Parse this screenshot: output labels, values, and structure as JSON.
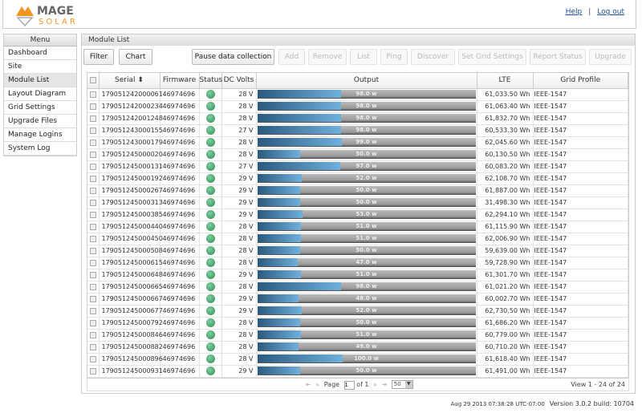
{
  "header": {
    "logo_top": "MAGE",
    "logo_bottom": "SOLAR",
    "help": "Help",
    "separator": "|",
    "logout": "Log out"
  },
  "sidebar": {
    "title": "Menu",
    "items": [
      {
        "label": "Dashboard"
      },
      {
        "label": "Site"
      },
      {
        "label": "Module List",
        "active": true
      },
      {
        "label": "Layout Diagram"
      },
      {
        "label": "Grid Settings"
      },
      {
        "label": "Upgrade Files"
      },
      {
        "label": "Manage Logins"
      },
      {
        "label": "System Log"
      }
    ]
  },
  "main": {
    "title": "Module List",
    "toolbar": {
      "filter": "Filter",
      "chart": "Chart",
      "pause": "Pause data collection",
      "add": "Add",
      "remove": "Remove",
      "list": "List",
      "ping": "Ping",
      "discover": "Discover",
      "set_grid": "Set Grid Settings",
      "report": "Report Status",
      "upgrade": "Upgrade"
    },
    "columns": [
      "Serial",
      "Firmware",
      "Status",
      "DC Volts",
      "Output",
      "LTE",
      "Grid Profile"
    ],
    "sort_icon": "sort-ascending-icon",
    "rows": [
      [
        "179051242000061",
        "46974696",
        "28 V",
        "98.0 w",
        "61,033.50 Wh",
        "IEEE-1547"
      ],
      [
        "179051242000234",
        "46974696",
        "28 V",
        "98.0 w",
        "61,063.40 Wh",
        "IEEE-1547"
      ],
      [
        "179051242001248",
        "46974696",
        "28 V",
        "98.0 w",
        "61,832.70 Wh",
        "IEEE-1547"
      ],
      [
        "179051243000155",
        "46974696",
        "27 V",
        "98.0 w",
        "60,533.30 Wh",
        "IEEE-1547"
      ],
      [
        "179051243000179",
        "46974696",
        "28 V",
        "99.0 w",
        "62,045.60 Wh",
        "IEEE-1547"
      ],
      [
        "179051245000020",
        "46974696",
        "28 V",
        "50.0 w",
        "60,130.50 Wh",
        "IEEE-1547"
      ],
      [
        "179051245000131",
        "46974696",
        "27 V",
        "97.0 w",
        "60,083.20 Wh",
        "IEEE-1547"
      ],
      [
        "179051245000192",
        "46974696",
        "29 V",
        "52.0 w",
        "62,108.70 Wh",
        "IEEE-1547"
      ],
      [
        "179051245000267",
        "46974696",
        "29 V",
        "50.0 w",
        "61,887.00 Wh",
        "IEEE-1547"
      ],
      [
        "179051245000313",
        "46974696",
        "29 V",
        "50.0 w",
        "31,498.30 Wh",
        "IEEE-1547"
      ],
      [
        "179051245000385",
        "46974696",
        "29 V",
        "53.0 w",
        "62,294.10 Wh",
        "IEEE-1547"
      ],
      [
        "179051245000440",
        "46974696",
        "28 V",
        "51.0 w",
        "61,115.90 Wh",
        "IEEE-1547"
      ],
      [
        "179051245000450",
        "46974696",
        "28 V",
        "51.0 w",
        "62,006.90 Wh",
        "IEEE-1547"
      ],
      [
        "179051245000508",
        "46974696",
        "28 V",
        "50.0 w",
        "59,639.00 Wh",
        "IEEE-1547"
      ],
      [
        "179051245000615",
        "46974696",
        "28 V",
        "47.0 w",
        "59,728.90 Wh",
        "IEEE-1547"
      ],
      [
        "179051245000648",
        "46974696",
        "29 V",
        "51.0 w",
        "61,301.70 Wh",
        "IEEE-1547"
      ],
      [
        "179051245000665",
        "46974696",
        "28 V",
        "98.0 w",
        "61,021.20 Wh",
        "IEEE-1547"
      ],
      [
        "179051245000667",
        "46974696",
        "29 V",
        "48.0 w",
        "60,002.70 Wh",
        "IEEE-1547"
      ],
      [
        "179051245000677",
        "46974696",
        "29 V",
        "52.0 w",
        "62,730.50 Wh",
        "IEEE-1547"
      ],
      [
        "179051245000792",
        "46974696",
        "28 V",
        "50.0 w",
        "61,686.20 Wh",
        "IEEE-1547"
      ],
      [
        "179051245000846",
        "46974696",
        "28 V",
        "51.0 w",
        "60,779.00 Wh",
        "IEEE-1547"
      ],
      [
        "179051245000882",
        "46974696",
        "28 V",
        "49.0 w",
        "60,710.20 Wh",
        "IEEE-1547"
      ],
      [
        "179051245000896",
        "46974696",
        "28 V",
        "100.0 w",
        "61,618.40 Wh",
        "IEEE-1547"
      ],
      [
        "179051245000931",
        "46974696",
        "29 V",
        "50.0 w",
        "61,491.00 Wh",
        "IEEE-1547"
      ]
    ],
    "status_color": "#2e8b57",
    "bar_fill_color": "#4a8fc0",
    "pager": {
      "page_label": "Page",
      "page": "1",
      "of": "of 1",
      "page_size": "50",
      "view": "View 1 - 24 of 24"
    }
  },
  "footer": {
    "timestamp": "Aug 29 2013 07:38:28 UTC-07:00",
    "version": "Version 3.0.2 build: 10704"
  }
}
